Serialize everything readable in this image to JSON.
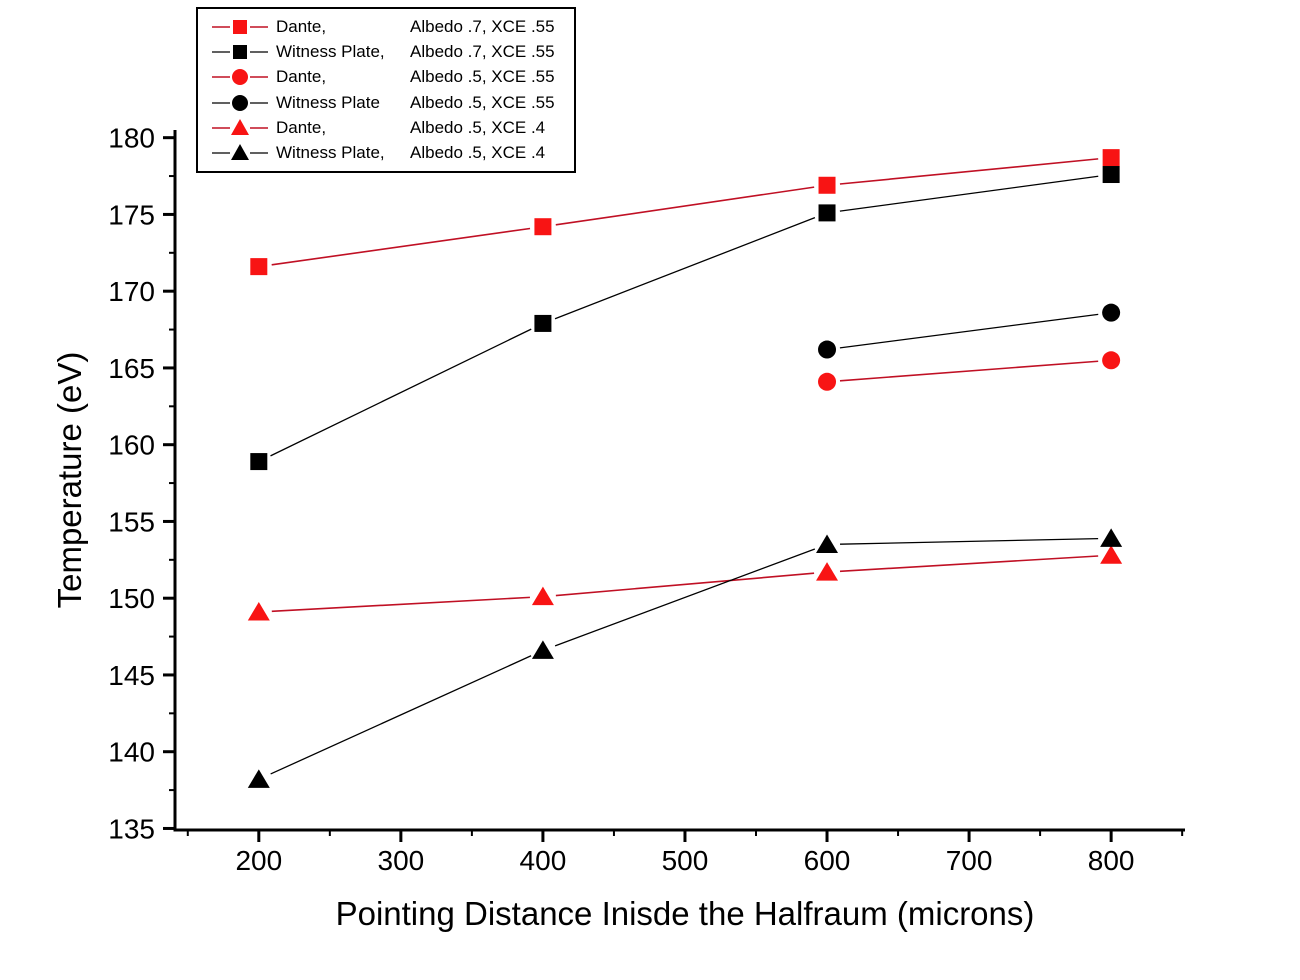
{
  "figure": {
    "background": "#ffffff",
    "text_color": "#000000"
  },
  "chart_data": {
    "type": "line",
    "title": "",
    "xlabel": "Pointing Distance Inisde the Halfraum (microns)",
    "ylabel": "Temperature (eV)",
    "legend_position": "top-left",
    "grid": false,
    "x_axis": {
      "range": [
        141,
        852
      ],
      "major_ticks": [
        200,
        300,
        400,
        500,
        600,
        700,
        800
      ],
      "minor_ticks": [
        150,
        250,
        350,
        450,
        550,
        650,
        750,
        850
      ]
    },
    "y_axis": {
      "range": [
        134.9,
        180.5
      ],
      "major_ticks": [
        135,
        140,
        145,
        150,
        155,
        160,
        165,
        170,
        175,
        180
      ],
      "minor_ticks": [
        137.5,
        142.5,
        147.5,
        152.5,
        157.5,
        162.5,
        167.5,
        172.5,
        177.5
      ]
    },
    "series": [
      {
        "name": "Dante, Albedo .7, XCE .55",
        "legend_name": "Dante,",
        "legend_spec": "Albedo .7, XCE .55",
        "marker": "square",
        "marker_color": "#f81414",
        "line_color": "#c01024",
        "x": [
          200,
          400,
          600,
          800
        ],
        "y": [
          171.6,
          174.2,
          176.9,
          178.7
        ]
      },
      {
        "name": "Witness Plate, Albedo .7, XCE .55",
        "legend_name": "Witness Plate,",
        "legend_spec": "Albedo .7, XCE .55",
        "marker": "square",
        "marker_color": "#000000",
        "line_color": "#000000",
        "x": [
          200,
          400,
          600,
          800
        ],
        "y": [
          158.9,
          167.9,
          175.1,
          177.6
        ]
      },
      {
        "name": "Dante, Albedo .5, XCE .55",
        "legend_name": "Dante,",
        "legend_spec": "Albedo .5, XCE .55",
        "marker": "circle",
        "marker_color": "#f81414",
        "line_color": "#c01024",
        "x": [
          600,
          800
        ],
        "y": [
          164.1,
          165.5
        ]
      },
      {
        "name": "Witness Plate Albedo .5, XCE .55",
        "legend_name": "Witness Plate",
        "legend_spec": "Albedo .5, XCE .55",
        "marker": "circle",
        "marker_color": "#000000",
        "line_color": "#000000",
        "x": [
          600,
          800
        ],
        "y": [
          166.2,
          168.6
        ]
      },
      {
        "name": "Dante, Albedo .5, XCE .4",
        "legend_name": "Dante,",
        "legend_spec": "Albedo .5, XCE .4",
        "marker": "triangle",
        "marker_color": "#f81414",
        "line_color": "#c01024",
        "x": [
          200,
          400,
          600,
          800
        ],
        "y": [
          149.1,
          150.1,
          151.7,
          152.8
        ]
      },
      {
        "name": "Witness Plate, Albedo .5, XCE .4",
        "legend_name": "Witness Plate,",
        "legend_spec": "Albedo .5, XCE .4",
        "marker": "triangle",
        "marker_color": "#000000",
        "line_color": "#000000",
        "x": [
          200,
          400,
          600,
          800
        ],
        "y": [
          138.2,
          146.6,
          153.5,
          153.9
        ]
      }
    ]
  }
}
